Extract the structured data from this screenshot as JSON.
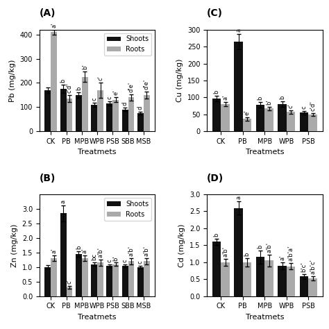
{
  "chart_data": [
    {
      "type": "bar",
      "title": "(A)",
      "x_label": "Treatmets",
      "y_label": "Pb (mg/kg)",
      "categories": [
        "CK",
        "PB",
        "MPB",
        "WPB",
        "PSB",
        "SBB",
        "MSB"
      ],
      "series": [
        {
          "name": "Shoots",
          "color": "#111111",
          "values": [
            170,
            175,
            150,
            110,
            115,
            90,
            75
          ],
          "errors": [
            12,
            18,
            12,
            8,
            8,
            7,
            6
          ],
          "annotations": [
            null,
            "b",
            "b",
            "c",
            "c",
            "d",
            "d"
          ]
        },
        {
          "name": "Roots",
          "color": "#aaaaaa",
          "values": [
            410,
            135,
            225,
            170,
            130,
            140,
            150
          ],
          "errors": [
            10,
            15,
            22,
            32,
            10,
            12,
            15
          ],
          "annotations": [
            "a'",
            "c'd'",
            "b'",
            "c'",
            "e'",
            "d'e'",
            "d'e'"
          ]
        }
      ],
      "ylim": [
        0,
        420
      ],
      "yticks": [
        0,
        100,
        200,
        300,
        400
      ],
      "legend": "upper right"
    },
    {
      "type": "bar",
      "title": "(C)",
      "x_label": "Treatmets",
      "y_label": "Cu (mg/kg)",
      "categories": [
        "CK",
        "PB",
        "MPB",
        "WPB",
        "PSB"
      ],
      "series": [
        {
          "color": "#111111",
          "values": [
            97,
            265,
            79,
            80,
            55
          ],
          "errors": [
            8,
            22,
            8,
            8,
            5
          ],
          "annotations": [
            "b",
            "a",
            "b",
            "b",
            "c"
          ]
        },
        {
          "color": "#aaaaaa",
          "values": [
            80,
            37,
            67,
            57,
            50
          ],
          "errors": [
            6,
            5,
            6,
            5,
            4
          ],
          "annotations": [
            "a'",
            "e'",
            "b'",
            "c'",
            "c'd'"
          ]
        }
      ],
      "ylim": [
        0,
        300
      ],
      "yticks": [
        0,
        50,
        100,
        150,
        200,
        250,
        300
      ]
    },
    {
      "type": "bar",
      "title": "(B)",
      "x_label": "Treatmets",
      "y_label": "Zn (mg/kg)",
      "categories": [
        "CK",
        "PB",
        "MPB",
        "WPB",
        "PSB",
        "SBB",
        "MSB"
      ],
      "series": [
        {
          "name": "Shoots",
          "color": "#111111",
          "values": [
            1.0,
            2.85,
            1.45,
            1.1,
            1.05,
            1.05,
            1.0
          ],
          "errors": [
            0.06,
            0.28,
            0.1,
            0.06,
            0.05,
            0.05,
            0.05
          ],
          "annotations": [
            null,
            "a",
            "b",
            "bc",
            "c",
            "c",
            "c"
          ]
        },
        {
          "name": "Roots",
          "color": "#aaaaaa",
          "values": [
            1.3,
            0.3,
            1.3,
            1.15,
            1.1,
            1.2,
            1.2
          ],
          "errors": [
            0.1,
            0.04,
            0.1,
            0.1,
            0.05,
            0.1,
            0.1
          ],
          "annotations": [
            "a'",
            "c'",
            "a'",
            "a'b'",
            "b'",
            "a'b'",
            "a'b'"
          ]
        }
      ],
      "ylim": [
        0,
        3.5
      ],
      "yticks": [
        {
          "value": 0,
          "label": "0.0"
        },
        0.5,
        {
          "value": 1,
          "label": "1.0"
        },
        1.5,
        {
          "value": 2,
          "label": "2.0"
        },
        2.5,
        {
          "value": 3,
          "label": "3.0"
        }
      ],
      "legend": "upper right"
    },
    {
      "type": "bar",
      "title": "(D)",
      "x_label": "Treatmets",
      "y_label": "Cd (mg/kg)",
      "categories": [
        "CK",
        "PB",
        "MPB",
        "WPB",
        "PSB"
      ],
      "series": [
        {
          "color": "#111111",
          "values": [
            1.6,
            2.6,
            1.15,
            0.9,
            0.58
          ],
          "errors": [
            0.1,
            0.2,
            0.2,
            0.1,
            0.07
          ],
          "annotations": [
            "b",
            "a",
            "b",
            "a'",
            "b'c'"
          ]
        },
        {
          "color": "#aaaaaa",
          "values": [
            1.0,
            1.0,
            1.05,
            0.88,
            0.52
          ],
          "errors": [
            0.1,
            0.12,
            0.18,
            0.1,
            0.06
          ],
          "annotations": [
            "a'b'",
            "b",
            "a'b'",
            "a'b'a'",
            "a'b'c'"
          ]
        }
      ],
      "ylim": [
        0,
        3.0
      ],
      "yticks": [
        {
          "value": 0,
          "label": "0.0"
        },
        0.5,
        {
          "value": 1,
          "label": "1.0"
        },
        1.5,
        {
          "value": 2,
          "label": "2.0"
        },
        2.5,
        {
          "value": 3,
          "label": "3.0"
        }
      ]
    }
  ]
}
